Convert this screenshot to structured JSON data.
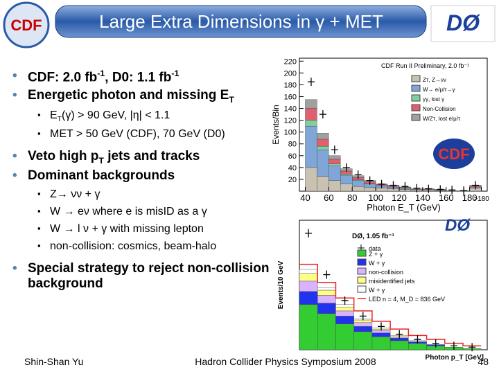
{
  "header": {
    "title": "Large Extra Dimensions in γ + MET",
    "logo_left": "CDF",
    "logo_right": "DØ"
  },
  "bullets": [
    {
      "level": 1,
      "parts": [
        {
          "text": "CDF: 2.0 fb"
        },
        {
          "sup": "-1"
        },
        {
          "text": ", D0: 1.1 fb"
        },
        {
          "sup": "-1"
        }
      ]
    },
    {
      "level": 1,
      "parts": [
        {
          "text": "Energetic photon and missing E"
        },
        {
          "sub": "T"
        }
      ]
    },
    {
      "level": 2,
      "parts": [
        {
          "text": "E"
        },
        {
          "sub": "T"
        },
        {
          "text": "(γ) > 90 GeV, |η| < 1.1"
        }
      ]
    },
    {
      "level": 2,
      "parts": [
        {
          "text": "MET > 50 GeV (CDF), 70 GeV (D0)"
        }
      ]
    },
    {
      "level": 1,
      "parts": [
        {
          "text": "Veto high p"
        },
        {
          "sub": "T"
        },
        {
          "text": " jets and tracks"
        }
      ]
    },
    {
      "level": 1,
      "parts": [
        {
          "text": "Dominant backgrounds"
        }
      ]
    },
    {
      "level": 2,
      "parts": [
        {
          "text": "Z→ νν + γ"
        }
      ]
    },
    {
      "level": 2,
      "parts": [
        {
          "text": "W → eν where e is misID as a γ"
        }
      ]
    },
    {
      "level": 2,
      "parts": [
        {
          "text": "W → l ν + γ with missing lepton"
        }
      ]
    },
    {
      "level": 2,
      "parts": [
        {
          "text": "non-collision: cosmics, beam-halo"
        }
      ]
    },
    {
      "level": 1,
      "parts": [
        {
          "text": "Special strategy to reject non-collision background"
        }
      ]
    }
  ],
  "plots": [
    {
      "legend_title": "CDF Run II Preliminary, 2.0 fb⁻¹",
      "ylabel": "Events/Bin",
      "xlabel": "Photon E_T (GeV)",
      "xlim": [
        35,
        195
      ],
      "ylim": [
        0,
        225
      ],
      "yticks": [
        20,
        40,
        60,
        80,
        100,
        120,
        140,
        160,
        180,
        200,
        220
      ],
      "xticks": [
        40,
        60,
        80,
        100,
        120,
        140,
        160,
        180,
        {
          "value": 190,
          "label": ">180"
        }
      ],
      "bins": [
        40,
        50,
        60,
        70,
        80,
        90,
        100,
        110,
        120,
        130,
        140,
        150,
        160,
        170,
        180,
        190
      ],
      "series": [
        {
          "name": "Zᴛ, Z→νν",
          "color": "#c9c1b1",
          "values": [
            40,
            25,
            18,
            12,
            8,
            6,
            5,
            4,
            3,
            2,
            2,
            1,
            1,
            1,
            5
          ]
        },
        {
          "name": "W→ e/μ/τ→γ",
          "color": "#7fa6d6",
          "values": [
            70,
            45,
            25,
            15,
            10,
            6,
            4,
            3,
            2,
            1,
            1,
            1,
            0,
            0,
            2
          ]
        },
        {
          "name": "γγ, lost γ",
          "color": "#7fcf9f",
          "values": [
            10,
            6,
            3,
            2,
            1,
            1,
            0,
            0,
            0,
            0,
            0,
            0,
            0,
            0,
            0
          ]
        },
        {
          "name": "Non-Collision",
          "color": "#e06070",
          "values": [
            20,
            12,
            8,
            5,
            4,
            3,
            2,
            2,
            1,
            1,
            1,
            1,
            0,
            0,
            2
          ]
        },
        {
          "name": "W/Zᴛ, lost e/μ/τ",
          "color": "#a0a0a0",
          "values": [
            15,
            10,
            6,
            4,
            3,
            2,
            1,
            1,
            1,
            0,
            0,
            0,
            0,
            0,
            1
          ]
        }
      ],
      "data": [
        185,
        130,
        70,
        40,
        28,
        18,
        12,
        10,
        8,
        5,
        4,
        3,
        2,
        1,
        10
      ]
    },
    {
      "legend_title": "DØ, 1.05 fb⁻¹",
      "ylabel": "Events/10 GeV",
      "xlabel": "Photon p_T [GeV]",
      "xlim": [
        90,
        400
      ],
      "ylim": [
        0,
        100
      ],
      "bins": [
        90,
        120,
        150,
        180,
        210,
        240,
        270,
        300,
        330,
        360,
        390
      ],
      "data_name": "data",
      "series": [
        {
          "name": "Z + γ",
          "color": "#33cc33",
          "values": [
            35,
            28,
            20,
            14,
            10,
            7,
            5,
            3,
            2,
            1
          ]
        },
        {
          "name": "W + γ",
          "color": "#2233ee",
          "values": [
            10,
            8,
            6,
            4,
            3,
            2,
            1,
            1,
            0,
            0
          ]
        },
        {
          "name": "non-collision",
          "color": "#d9b3ff",
          "values": [
            8,
            6,
            4,
            3,
            2,
            1,
            1,
            0,
            0,
            0
          ]
        },
        {
          "name": "misidentified jets",
          "color": "#ffff88",
          "values": [
            6,
            4,
            3,
            2,
            1,
            1,
            0,
            0,
            0,
            0
          ]
        },
        {
          "name": "W + γ",
          "color": "#ffffff",
          "values": [
            3,
            2,
            2,
            1,
            1,
            0,
            0,
            0,
            0,
            0
          ]
        }
      ],
      "line": {
        "name": "LED n = 4, M_D = 836 GeV",
        "color": "#ee2222",
        "values": [
          66,
          52,
          40,
          30,
          22,
          16,
          11,
          8,
          5,
          3
        ]
      },
      "data": [
        90,
        58,
        38,
        26,
        18,
        12,
        8,
        5,
        3,
        2
      ]
    }
  ],
  "footer": {
    "author": "Shin-Shan Yu",
    "conference": "Hadron Collider Physics Symposium 2008",
    "page": "48"
  }
}
